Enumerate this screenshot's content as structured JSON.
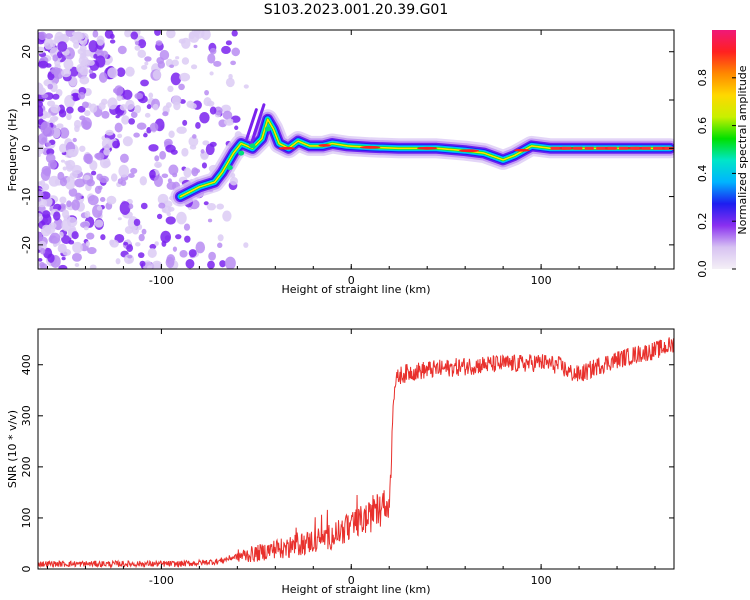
{
  "figure_title": "S103.2023.001.20.39.G01",
  "chart_data": [
    {
      "type": "heatmap",
      "title": "S103.2023.001.20.39.G01",
      "xlabel": "Height of straight line (km)",
      "ylabel": "Frequency (Hz)",
      "xlim": [
        -165,
        170
      ],
      "ylim": [
        -25,
        24.5
      ],
      "xticks": [
        "-100",
        "0",
        "100"
      ],
      "yticks": [
        "-20",
        "-10",
        "0",
        "10",
        "20"
      ],
      "colorbar": {
        "label": "Normalized spectral amplitude",
        "range": [
          0,
          1
        ],
        "ticks": [
          "0.0",
          "0.2",
          "0.4",
          "0.6",
          "0.8"
        ],
        "colormap": [
          "#f4f0f6",
          "#d7c2f2",
          "#8a30f0",
          "#1d1df0",
          "#00b4ff",
          "#00e6c8",
          "#00e000",
          "#c8f000",
          "#ffd800",
          "#ff8800",
          "#ff2020",
          "#f01878"
        ]
      },
      "ridge": {
        "description_points": [
          [
            -90,
            -10
          ],
          [
            -80,
            -8
          ],
          [
            -72,
            -7
          ],
          [
            -68,
            -5
          ],
          [
            -62,
            -1
          ],
          [
            -58,
            1
          ],
          [
            -52,
            0
          ],
          [
            -47,
            2
          ],
          [
            -44,
            6
          ],
          [
            -41,
            4
          ],
          [
            -38,
            1
          ],
          [
            -33,
            0
          ],
          [
            -28,
            1.5
          ],
          [
            -22,
            0.5
          ],
          [
            -15,
            0.5
          ],
          [
            -10,
            1
          ],
          [
            -2,
            0.5
          ],
          [
            10,
            0.2
          ],
          [
            25,
            0
          ],
          [
            45,
            0
          ],
          [
            60,
            -0.5
          ],
          [
            70,
            -1
          ],
          [
            80,
            -2.4
          ],
          [
            86,
            -1.5
          ],
          [
            95,
            0.5
          ],
          [
            105,
            0
          ],
          [
            120,
            0
          ],
          [
            150,
            0
          ],
          [
            168,
            0
          ]
        ]
      },
      "grid": false
    },
    {
      "type": "line",
      "title": "",
      "xlabel": "Height of straight line (km)",
      "ylabel": "SNR (10 * v/v)",
      "xlim": [
        -165,
        170
      ],
      "ylim": [
        0,
        470
      ],
      "xticks": [
        "-100",
        "0",
        "100"
      ],
      "yticks": [
        "0",
        "100",
        "200",
        "300",
        "400"
      ],
      "color": "#e8302c",
      "series": [
        {
          "name": "",
          "x": [
            -165,
            -150,
            -130,
            -110,
            -90,
            -80,
            -70,
            -60,
            -50,
            -45,
            -40,
            -35,
            -30,
            -25,
            -20,
            -15,
            -10,
            -5,
            0,
            5,
            10,
            12,
            15,
            18,
            20,
            21,
            22,
            23,
            25,
            30,
            40,
            50,
            60,
            70,
            80,
            90,
            100,
            110,
            115,
            120,
            125,
            130,
            140,
            150,
            160,
            170
          ],
          "y": [
            10,
            10,
            10,
            10,
            10,
            12,
            15,
            25,
            30,
            35,
            40,
            40,
            45,
            50,
            55,
            60,
            65,
            75,
            80,
            95,
            100,
            120,
            115,
            120,
            120,
            200,
            330,
            360,
            378,
            385,
            390,
            393,
            397,
            400,
            402,
            402,
            405,
            398,
            385,
            380,
            388,
            398,
            410,
            420,
            428,
            440
          ]
        }
      ],
      "grid": false
    }
  ]
}
